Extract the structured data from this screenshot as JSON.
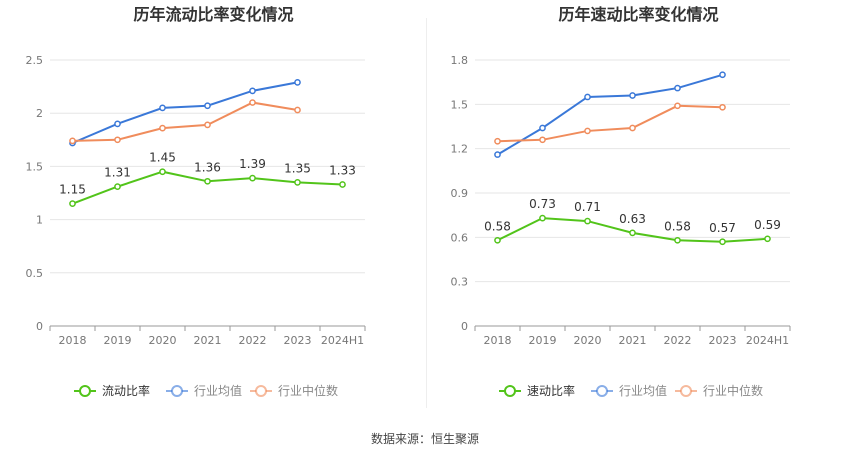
{
  "source_text": "数据来源：恒生聚源",
  "chart_data": [
    {
      "type": "line",
      "title": "历年流动比率变化情况",
      "categories": [
        "2018",
        "2019",
        "2020",
        "2021",
        "2022",
        "2023",
        "2024H1"
      ],
      "ylim": [
        0,
        2.5
      ],
      "yticks": [
        "0",
        "0.5",
        "1",
        "1.5",
        "2",
        "2.5"
      ],
      "grid": true,
      "legend_position": "bottom",
      "series": [
        {
          "name": "流动比率",
          "color": "#52c41a",
          "values": [
            1.15,
            1.31,
            1.45,
            1.36,
            1.39,
            1.35,
            1.33
          ],
          "labels": [
            "1.15",
            "1.31",
            "1.45",
            "1.36",
            "1.39",
            "1.35",
            "1.33"
          ]
        },
        {
          "name": "行业均值",
          "color": "#3a78d8",
          "values": [
            1.72,
            1.9,
            2.05,
            2.07,
            2.21,
            2.29,
            null
          ]
        },
        {
          "name": "行业中位数",
          "color": "#f08c5c",
          "values": [
            1.74,
            1.75,
            1.86,
            1.89,
            2.1,
            2.03,
            null
          ]
        }
      ]
    },
    {
      "type": "line",
      "title": "历年速动比率变化情况",
      "categories": [
        "2018",
        "2019",
        "2020",
        "2021",
        "2022",
        "2023",
        "2024H1"
      ],
      "ylim": [
        0,
        1.8
      ],
      "yticks": [
        "0",
        "0.3",
        "0.6",
        "0.9",
        "1.2",
        "1.5",
        "1.8"
      ],
      "grid": true,
      "legend_position": "bottom",
      "series": [
        {
          "name": "速动比率",
          "color": "#52c41a",
          "values": [
            0.58,
            0.73,
            0.71,
            0.63,
            0.58,
            0.57,
            0.59
          ],
          "labels": [
            "0.58",
            "0.73",
            "0.71",
            "0.63",
            "0.58",
            "0.57",
            "0.59"
          ]
        },
        {
          "name": "行业均值",
          "color": "#3a78d8",
          "values": [
            1.16,
            1.34,
            1.55,
            1.56,
            1.61,
            1.7,
            null
          ]
        },
        {
          "name": "行业中位数",
          "color": "#f08c5c",
          "values": [
            1.25,
            1.26,
            1.32,
            1.34,
            1.49,
            1.48,
            null
          ]
        }
      ]
    }
  ]
}
